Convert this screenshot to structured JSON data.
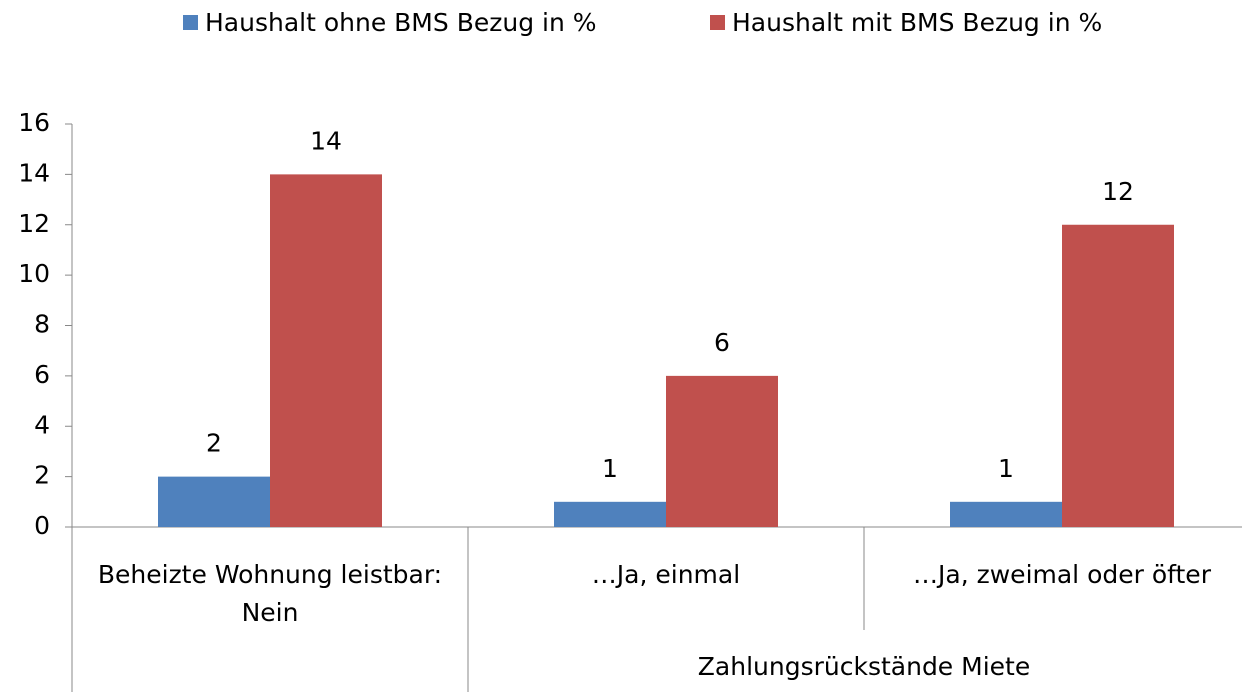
{
  "chart_data": {
    "type": "bar",
    "categories": [
      "Beheizte Wohnung leistbar: Nein",
      "…Ja, einmal",
      "…Ja, zweimal oder öfter"
    ],
    "category_groups": [
      null,
      "Zahlungsrückstände Miete",
      "Zahlungsrückstände Miete"
    ],
    "series": [
      {
        "name": "Haushalt ohne BMS Bezug in %",
        "color": "#4f81bd",
        "values": [
          2,
          1,
          1
        ]
      },
      {
        "name": "Haushalt mit BMS Bezug in %",
        "color": "#c0504d",
        "values": [
          14,
          6,
          12
        ]
      }
    ],
    "ylim": [
      0,
      16
    ],
    "yticks": [
      0,
      2,
      4,
      6,
      8,
      10,
      12,
      14,
      16
    ],
    "grid": false,
    "legend": "top"
  }
}
